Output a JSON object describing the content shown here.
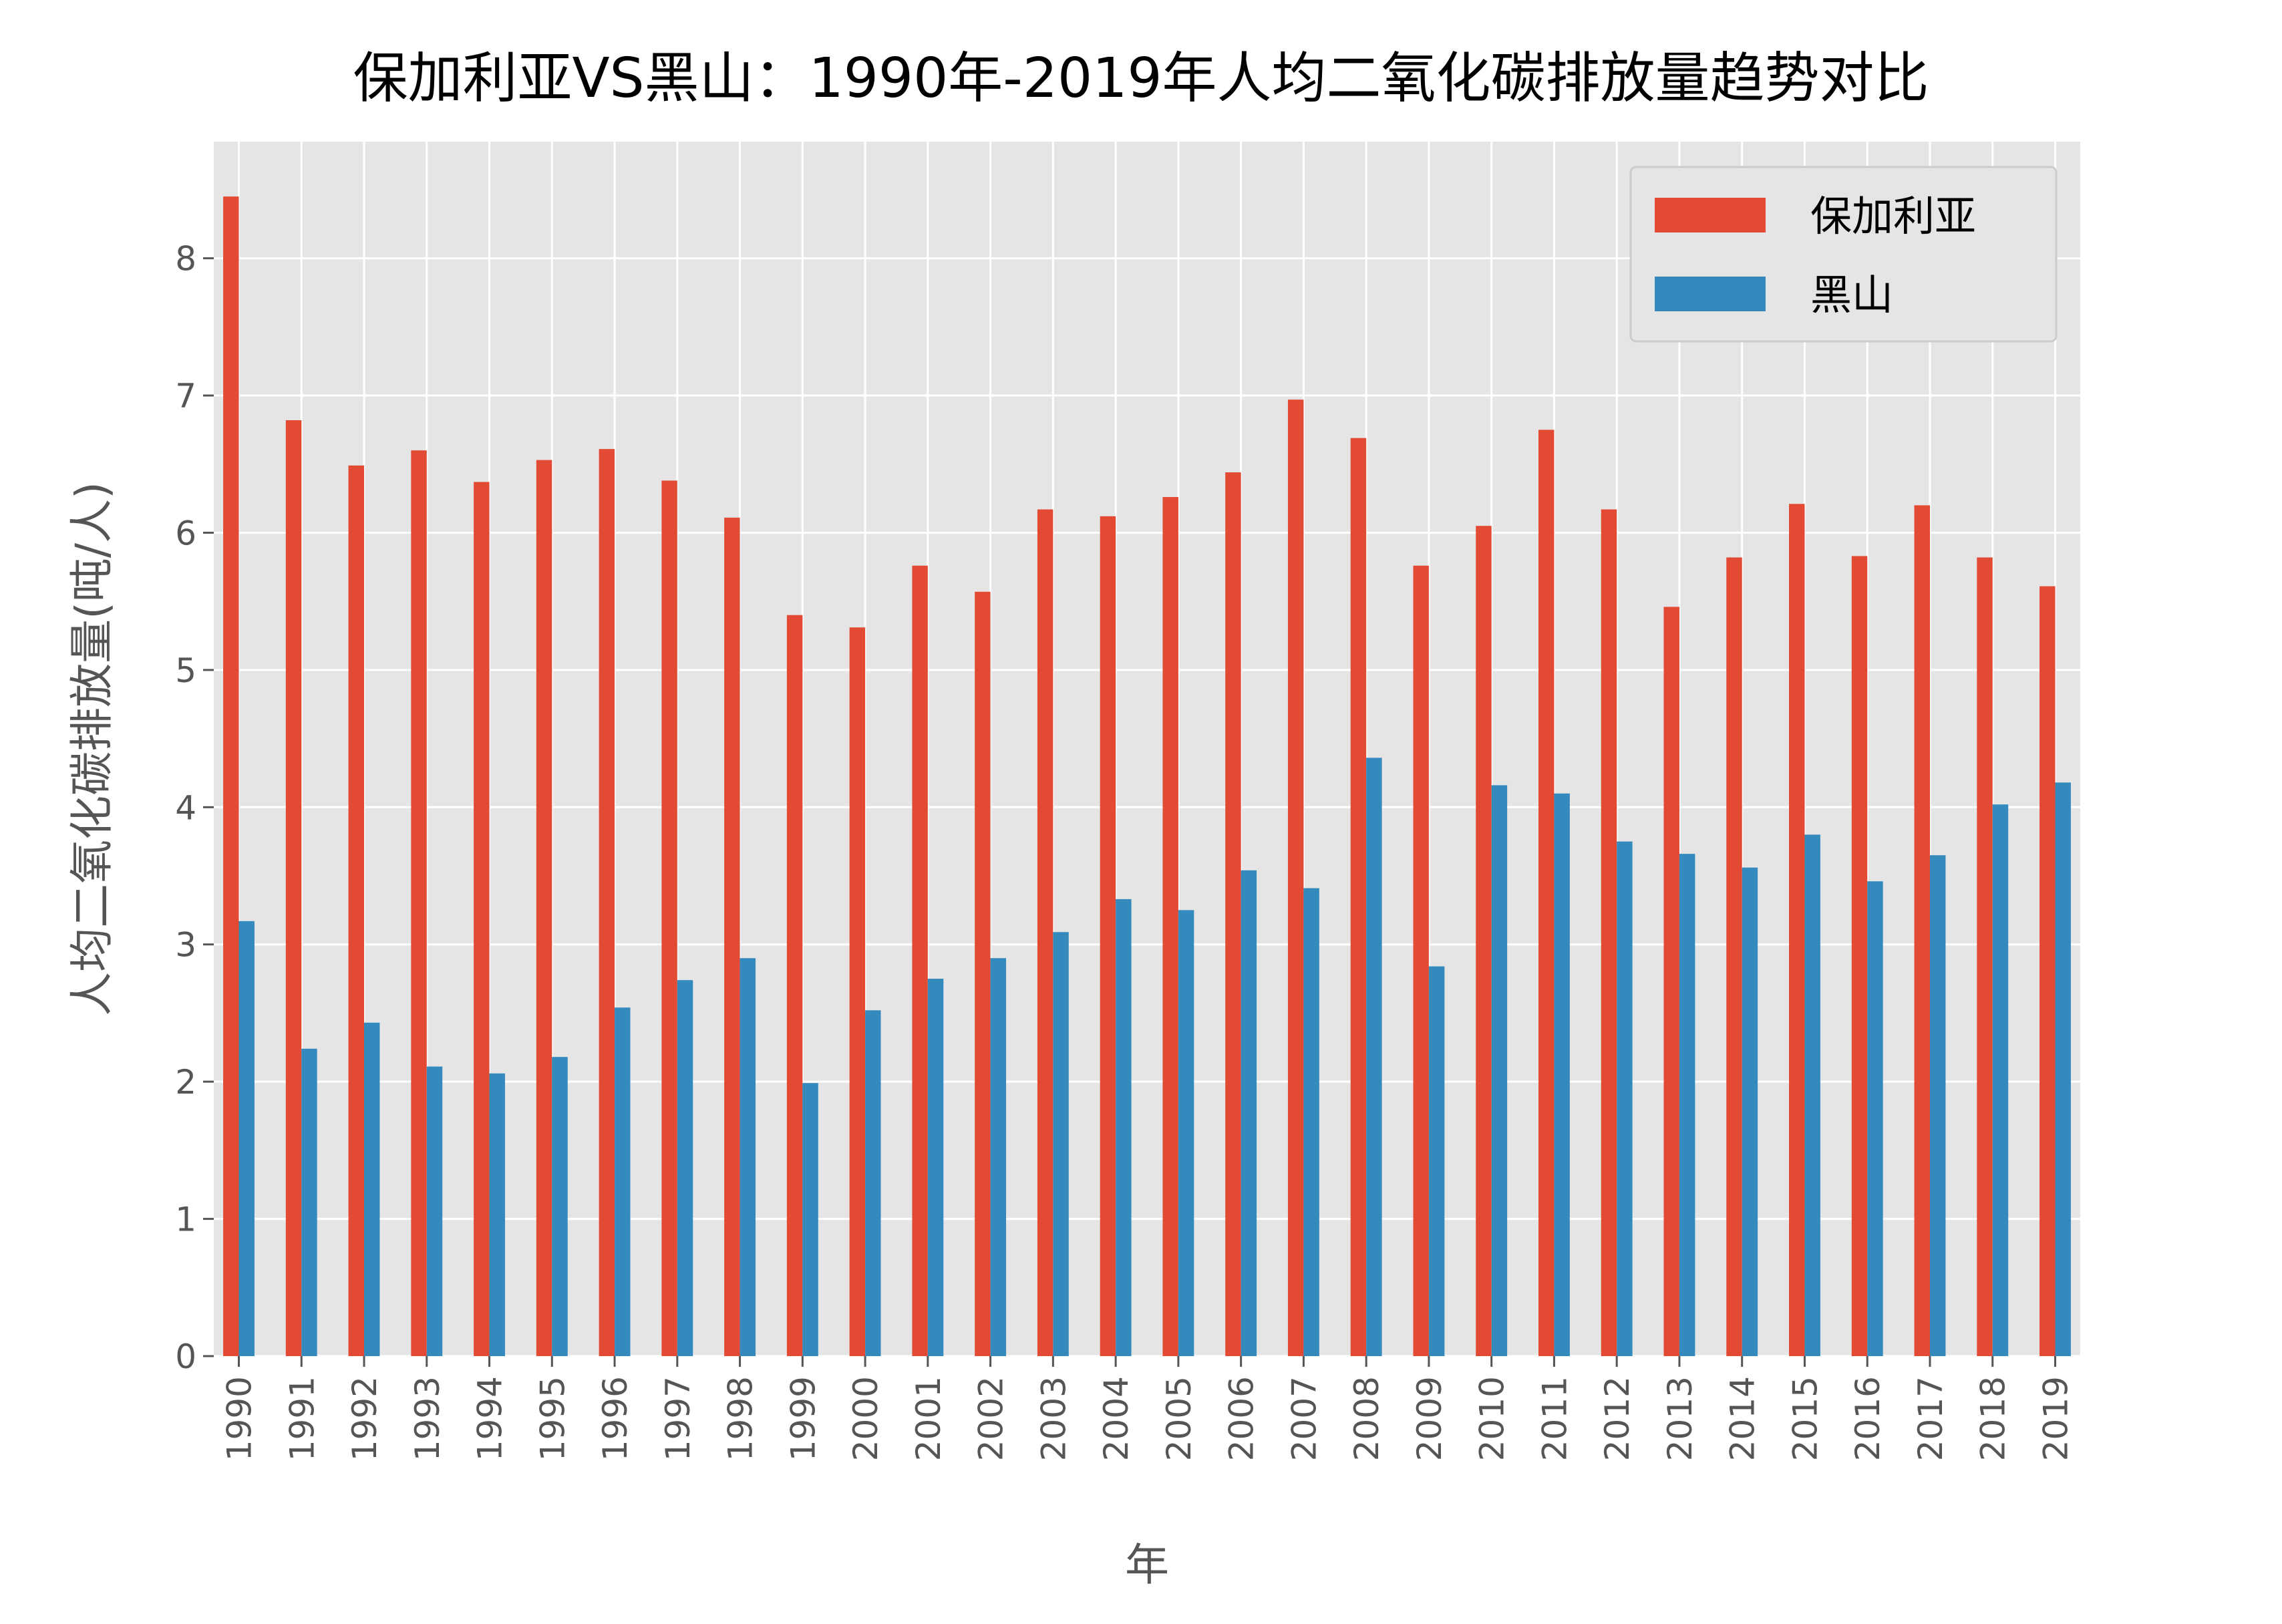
{
  "chart_data": {
    "type": "bar",
    "title": "保加利亚VS黑山：1990年-2019年人均二氧化碳排放量趋势对比",
    "xlabel": "年",
    "ylabel": "人均二氧化碳排放量(吨/人)",
    "ylim": [
      0,
      8.85
    ],
    "yticks": [
      "0",
      "1",
      "2",
      "3",
      "4",
      "5",
      "6",
      "7",
      "8"
    ],
    "grid": true,
    "legend_position": "top-right",
    "categories": [
      "1990",
      "1991",
      "1992",
      "1993",
      "1994",
      "1995",
      "1996",
      "1997",
      "1998",
      "1999",
      "2000",
      "2001",
      "2002",
      "2003",
      "2004",
      "2005",
      "2006",
      "2007",
      "2008",
      "2009",
      "2010",
      "2011",
      "2012",
      "2013",
      "2014",
      "2015",
      "2016",
      "2017",
      "2018",
      "2019"
    ],
    "series": [
      {
        "name": "保加利亚",
        "color": "#E24A33",
        "values": [
          8.45,
          6.82,
          6.49,
          6.6,
          6.37,
          6.53,
          6.61,
          6.38,
          6.11,
          5.4,
          5.31,
          5.76,
          5.57,
          6.17,
          6.12,
          6.26,
          6.44,
          6.97,
          6.69,
          5.76,
          6.05,
          6.75,
          6.17,
          5.46,
          5.82,
          6.21,
          5.83,
          6.2,
          5.82,
          5.61
        ]
      },
      {
        "name": "黑山",
        "color": "#348ABD",
        "values": [
          3.17,
          2.24,
          2.43,
          2.11,
          2.06,
          2.18,
          2.54,
          2.74,
          2.9,
          1.99,
          2.52,
          2.75,
          2.9,
          3.09,
          3.33,
          3.25,
          3.54,
          3.41,
          4.36,
          2.84,
          4.16,
          4.1,
          3.75,
          3.66,
          3.56,
          3.8,
          3.46,
          3.65,
          4.02,
          4.18
        ]
      }
    ]
  }
}
